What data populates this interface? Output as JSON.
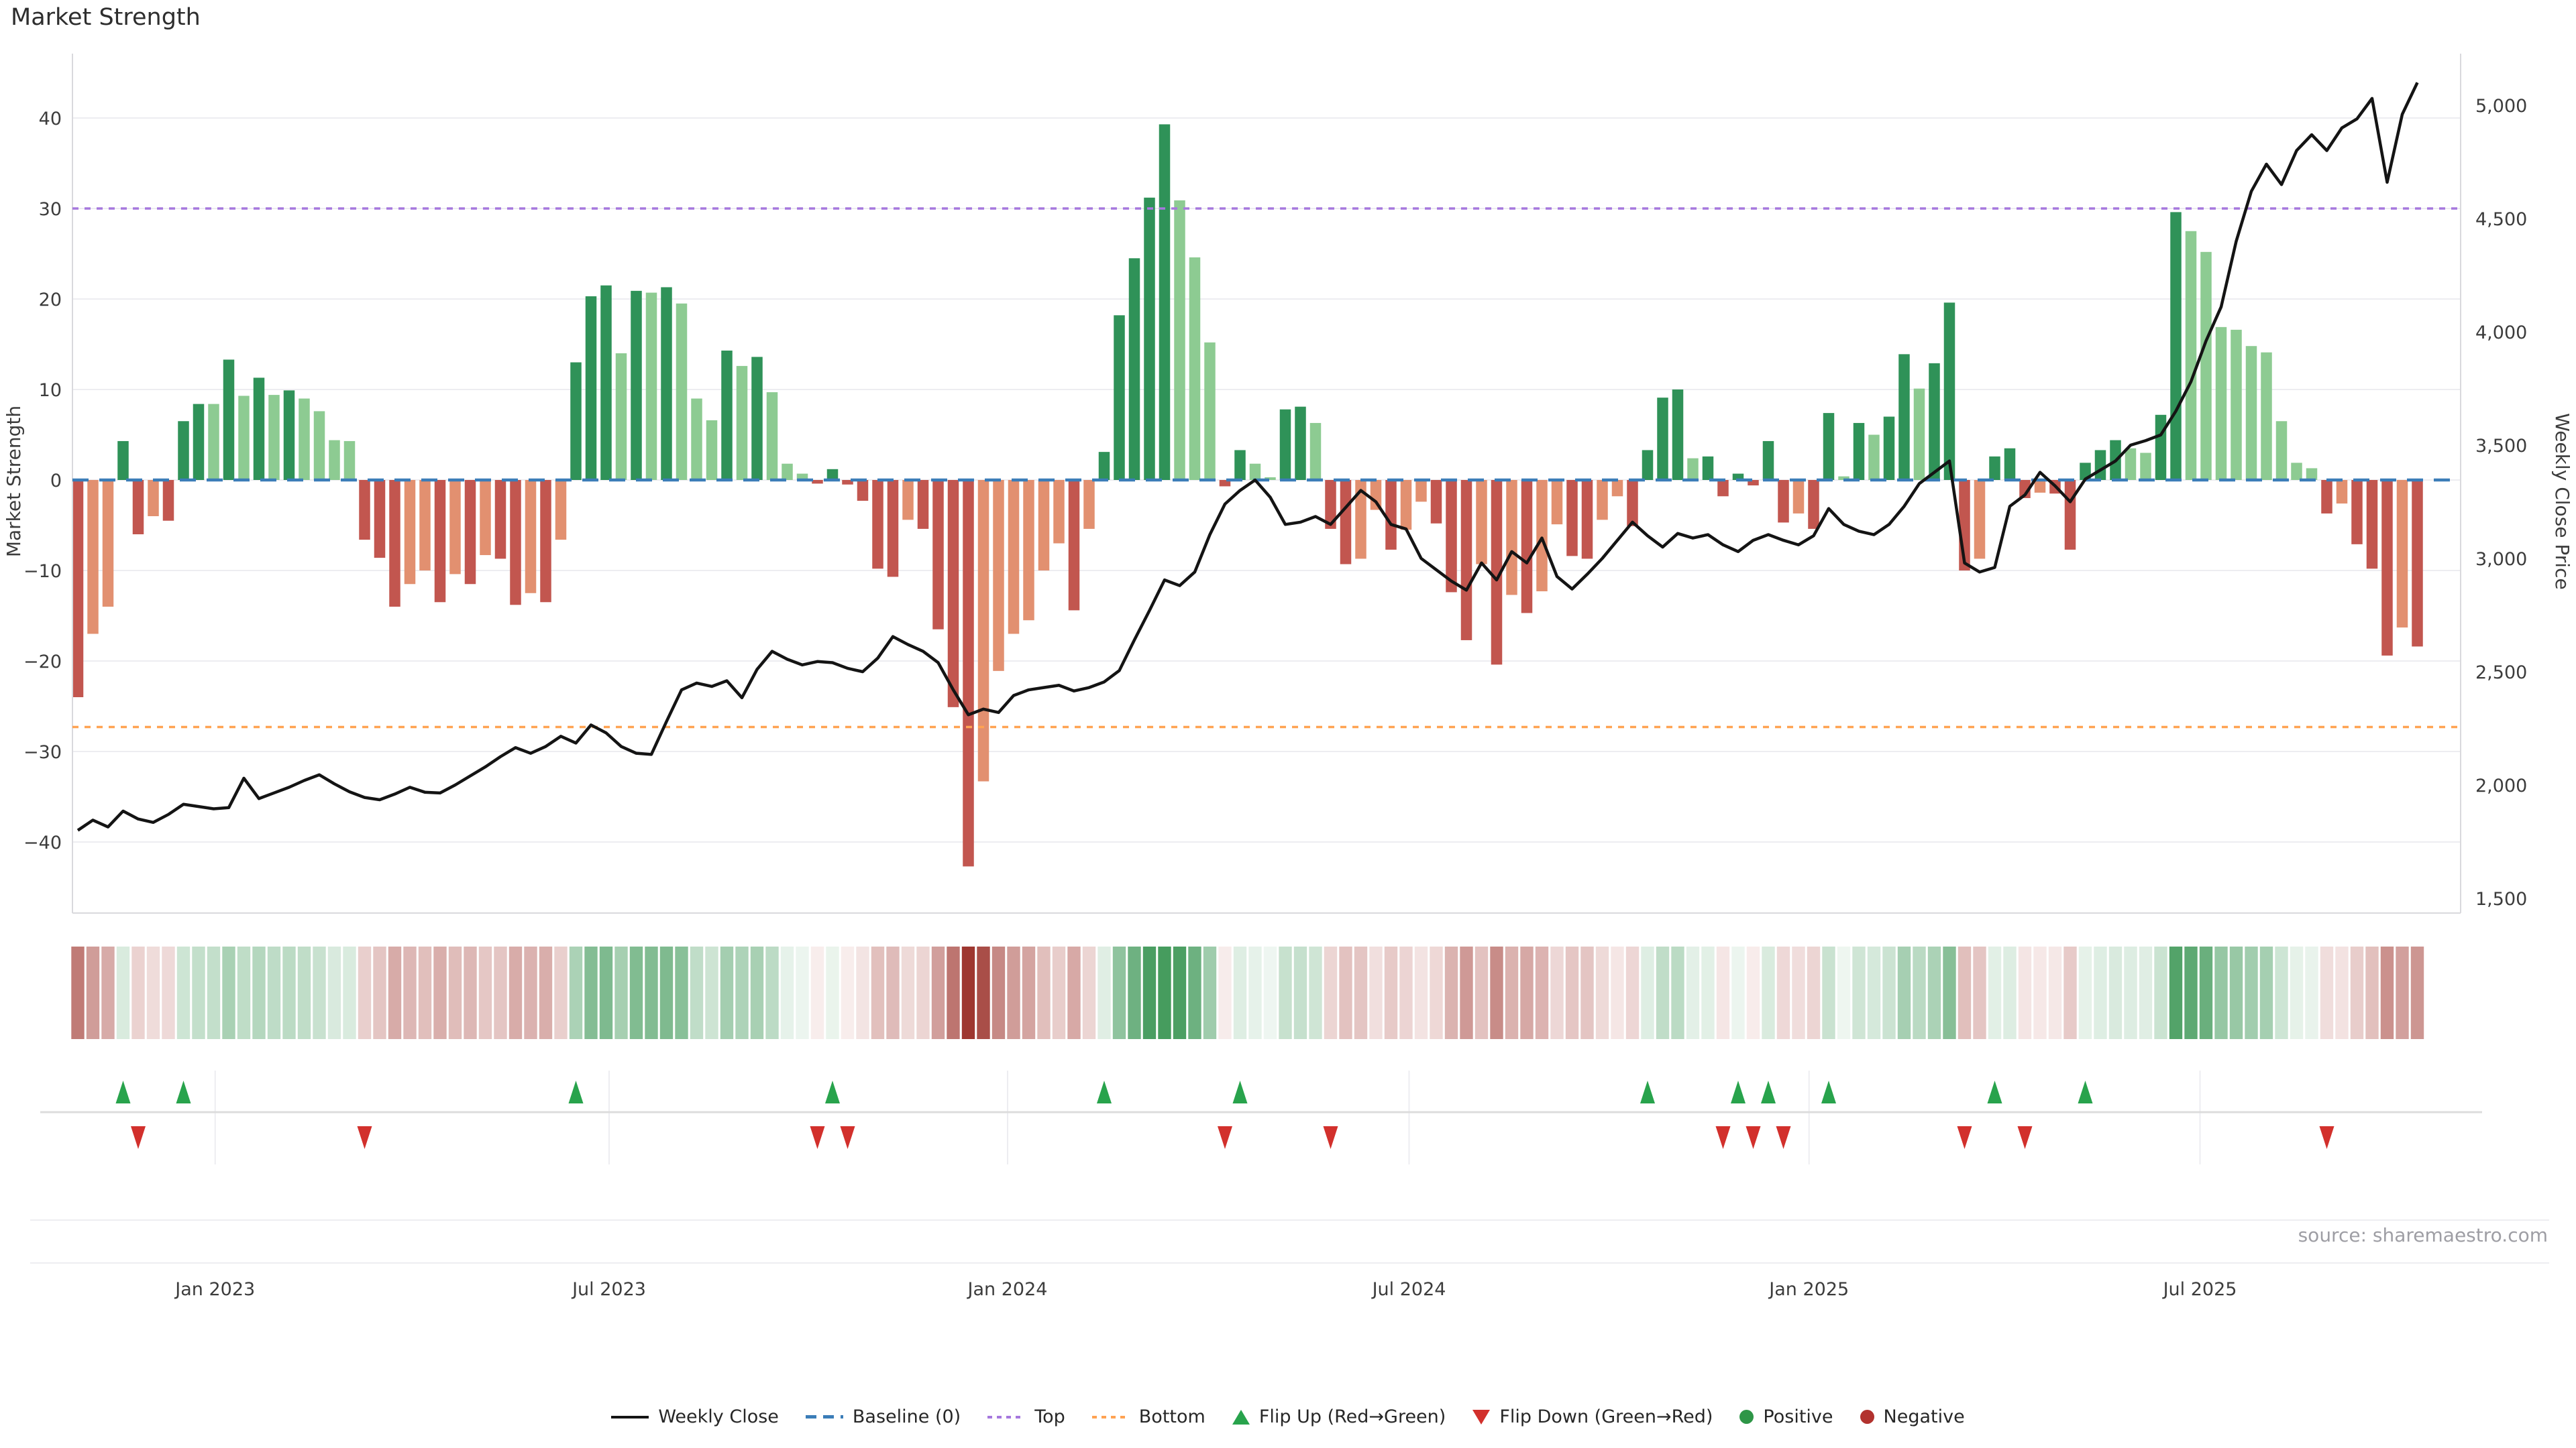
{
  "title": "Market Strength",
  "source": "source: sharemaestro.com",
  "axes": {
    "left_label": "Market Strength",
    "right_label": "Weekly Close Price",
    "left_ticks": [
      40,
      30,
      20,
      10,
      0,
      -10,
      -20,
      -30,
      -40
    ],
    "right_ticks": [
      {
        "label": "5,000",
        "value": 5000
      },
      {
        "label": "4,500",
        "value": 4500
      },
      {
        "label": "4,000",
        "value": 4000
      },
      {
        "label": "3,500",
        "value": 3500
      },
      {
        "label": "3,000",
        "value": 3000
      },
      {
        "label": "2,500",
        "value": 2500
      },
      {
        "label": "2,000",
        "value": 2000
      },
      {
        "label": "1,500",
        "value": 1500
      }
    ],
    "x_ticks": [
      {
        "label": "Jan 2023",
        "week": 9.1
      },
      {
        "label": "Jul 2023",
        "week": 35.2
      },
      {
        "label": "Jan 2024",
        "week": 61.6
      },
      {
        "label": "Jul 2024",
        "week": 88.2
      },
      {
        "label": "Jan 2025",
        "week": 114.7
      },
      {
        "label": "Jul 2025",
        "week": 140.6
      }
    ]
  },
  "legend": [
    {
      "label": "Weekly Close",
      "swatch": "line"
    },
    {
      "label": "Baseline (0)",
      "swatch": "dashed-blue"
    },
    {
      "label": "Top",
      "swatch": "dotted-purple"
    },
    {
      "label": "Bottom",
      "swatch": "dotted-orange"
    },
    {
      "label": "Flip Up (Red→Green)",
      "swatch": "triangle-up-green"
    },
    {
      "label": "Flip Down (Green→Red)",
      "swatch": "triangle-down-red"
    },
    {
      "label": "Positive",
      "swatch": "dot-green"
    },
    {
      "label": "Negative",
      "swatch": "dot-darkred"
    }
  ],
  "colors": {
    "bar_positive_dark": "#2f9258",
    "bar_positive_light": "#8dcb92",
    "bar_negative_dark": "#c2564f",
    "bar_negative_light": "#e29070",
    "price_line": "#141414",
    "baseline": "#3b7db8",
    "top_line": "#a678de",
    "bottom_line": "#ffa352",
    "flip_up": "#28a34c",
    "flip_down": "#d2302c",
    "grid": "#ededf1",
    "spine": "#d9d9dd",
    "marker_divider": "#dcdcdc",
    "heat_green_strong": "#469c5e",
    "heat_green_pale": "#f0f7f2",
    "heat_red_strong": "#9e3730",
    "heat_red_pale": "#f9efee",
    "tick_text": "#3c3c3c",
    "source_text": "#9e9ea4"
  },
  "chart_data": {
    "type": "bar+line",
    "x_unit": "week",
    "title": "Market Strength",
    "ylabel_left": "Market Strength",
    "ylabel_right": "Weekly Close Price",
    "strength_axis": {
      "min": -47,
      "max": 47,
      "gridline_step": 10
    },
    "price_axis": {
      "min": 1440,
      "max": 5230,
      "tick_step": 500
    },
    "ref_lines": {
      "baseline": 0,
      "top": 30,
      "bottom": -27.3
    },
    "series": [
      {
        "name": "Market Strength",
        "type": "bar",
        "values": [
          -24.0,
          -17.0,
          -14.0,
          4.3,
          -6.0,
          -4.0,
          -4.5,
          6.5,
          8.4,
          8.4,
          13.3,
          9.3,
          11.3,
          9.4,
          9.9,
          9.0,
          7.6,
          4.4,
          4.3,
          -6.6,
          -8.6,
          -14.0,
          -11.5,
          -10.0,
          -13.5,
          -10.4,
          -11.5,
          -8.3,
          -8.7,
          -13.8,
          -12.5,
          -13.5,
          -6.6,
          13.0,
          20.3,
          21.5,
          14.0,
          20.9,
          20.7,
          21.3,
          19.5,
          9.0,
          6.6,
          14.3,
          12.6,
          13.6,
          9.7,
          1.8,
          0.7,
          -0.4,
          1.2,
          -0.5,
          -2.3,
          -9.8,
          -10.7,
          -4.4,
          -5.4,
          -16.5,
          -25.1,
          -42.7,
          -33.3,
          -21.1,
          -17.0,
          -15.5,
          -10.0,
          -7.0,
          -14.4,
          -5.4,
          3.1,
          18.2,
          24.5,
          31.2,
          39.3,
          30.9,
          24.6,
          15.2,
          -0.7,
          3.3,
          1.8,
          0.3,
          7.8,
          8.1,
          6.3,
          -5.4,
          -9.3,
          -8.7,
          -3.3,
          -7.7,
          -5.5,
          -2.4,
          -4.8,
          -12.4,
          -17.7,
          -9.3,
          -20.4,
          -12.7,
          -14.7,
          -12.3,
          -4.9,
          -8.4,
          -8.7,
          -4.4,
          -1.8,
          -5.1,
          3.3,
          9.1,
          10.0,
          2.4,
          2.6,
          -1.8,
          0.7,
          -0.6,
          4.3,
          -4.7,
          -3.7,
          -5.4,
          7.4,
          0.4,
          6.3,
          5.0,
          7.0,
          13.9,
          10.1,
          12.9,
          19.6,
          -10.0,
          -8.7,
          2.6,
          3.5,
          -2.0,
          -1.4,
          -1.5,
          -7.7,
          1.9,
          3.3,
          4.4,
          3.5,
          3.0,
          7.2,
          29.6,
          27.5,
          25.2,
          16.9,
          16.6,
          14.8,
          14.1,
          6.5,
          1.9,
          1.3,
          -3.7,
          -2.6,
          -7.1,
          -9.8,
          -19.4,
          -16.3,
          -18.4
        ]
      },
      {
        "name": "Weekly Close",
        "type": "line",
        "values": [
          1800,
          1845,
          1815,
          1885,
          1850,
          1835,
          1870,
          1915,
          1905,
          1895,
          1900,
          2030,
          1940,
          1965,
          1990,
          2020,
          2045,
          2005,
          1970,
          1945,
          1935,
          1960,
          1990,
          1968,
          1965,
          2000,
          2040,
          2080,
          2125,
          2165,
          2140,
          2170,
          2215,
          2185,
          2265,
          2230,
          2170,
          2140,
          2135,
          2280,
          2420,
          2450,
          2435,
          2460,
          2385,
          2510,
          2590,
          2555,
          2530,
          2545,
          2540,
          2515,
          2500,
          2560,
          2655,
          2620,
          2590,
          2540,
          2420,
          2310,
          2335,
          2320,
          2395,
          2420,
          2430,
          2440,
          2415,
          2430,
          2455,
          2505,
          2640,
          2770,
          2905,
          2880,
          2940,
          3105,
          3240,
          3300,
          3346,
          3270,
          3150,
          3160,
          3185,
          3150,
          3225,
          3300,
          3250,
          3150,
          3130,
          3000,
          2950,
          2900,
          2860,
          2980,
          2905,
          3030,
          2980,
          3090,
          2920,
          2865,
          2930,
          3000,
          3080,
          3160,
          3100,
          3050,
          3110,
          3090,
          3105,
          3060,
          3030,
          3080,
          3105,
          3080,
          3060,
          3100,
          3220,
          3150,
          3120,
          3105,
          3150,
          3230,
          3330,
          3380,
          3430,
          2980,
          2940,
          2960,
          3230,
          3280,
          3380,
          3320,
          3250,
          3350,
          3390,
          3430,
          3500,
          3520,
          3545,
          3650,
          3780,
          3960,
          4110,
          4400,
          4620,
          4740,
          4650,
          4800,
          4870,
          4800,
          4900,
          4940,
          5030,
          4660,
          4960,
          5100
        ]
      }
    ],
    "flip_up_weeks": [
      3,
      7,
      33,
      50,
      68,
      77,
      104,
      110,
      112,
      116,
      127,
      133
    ],
    "flip_down_weeks": [
      4,
      19,
      49,
      51,
      76,
      83,
      109,
      111,
      113,
      125,
      129,
      149
    ],
    "shading_rule": "dark shade when |value| >= |previous| or sign flip; light shade when weakening",
    "heatmap": "same weekly strength values rendered as a red-green intensity strip",
    "legend_position": "bottom-center",
    "grid": true
  }
}
